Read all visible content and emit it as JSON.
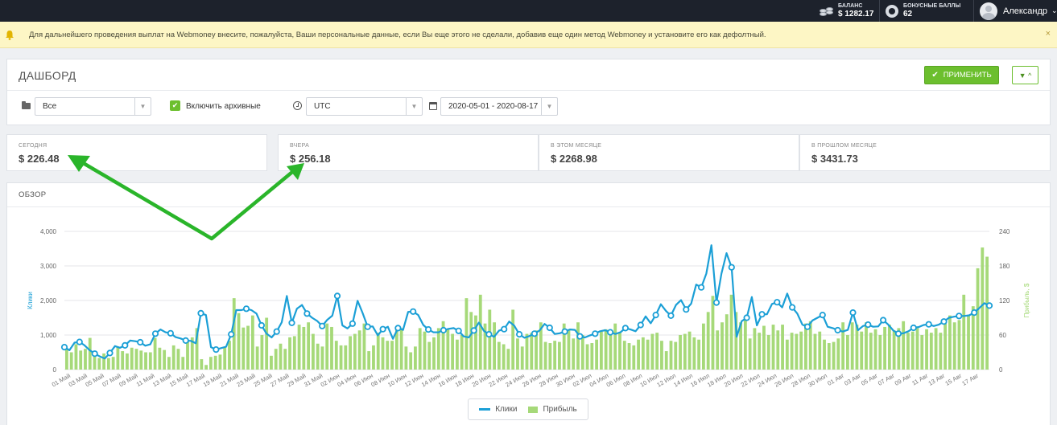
{
  "topbar": {
    "balance_label": "БАЛАНС",
    "balance_value": "$ 1282.17",
    "bonus_label": "БОНУСНЫЕ БАЛЛЫ",
    "bonus_value": "62",
    "user_name": "Александр"
  },
  "alert": {
    "text": "Для дальнейшего проведения выплат на Webmoney внесите, пожалуйста, Ваши персональные данные, если Вы еще этого не сделали, добавив еще один метод Webmoney и установите его как дефолтный.",
    "close": "×"
  },
  "dashboard": {
    "title": "ДАШБОРД",
    "apply_label": "ПРИМЕНИТЬ",
    "filter_toggle": "▼ ^",
    "category_select": "Все",
    "archive_checkbox_label": "Включить архивные",
    "timezone_select": "UTC",
    "date_range": "2020-05-01 - 2020-08-17"
  },
  "stats": [
    {
      "label": "СЕГОДНЯ",
      "value": "$ 226.48"
    },
    {
      "label": "ВЧЕРА",
      "value": "$ 256.18"
    },
    {
      "label": "В ЭТОМ МЕСЯЦЕ",
      "value": "$ 2268.98"
    },
    {
      "label": "В ПРОШЛОМ МЕСЯЦЕ",
      "value": "$ 3431.73"
    }
  ],
  "overview": {
    "title": "ОБЗОР"
  },
  "colors": {
    "clicks": "#1b9fd6",
    "profit": "#a6d979",
    "accent": "#6cbf2e",
    "annotation_arrow": "#2ab52a"
  },
  "chart_data": {
    "type": "bar",
    "ylabel_left": "Клики",
    "ylabel_right": "Прибыль, $",
    "y_left_range": [
      0,
      4000
    ],
    "y_left_ticks": [
      "0",
      "1,000",
      "2,000",
      "3,000",
      "4,000"
    ],
    "y_right_range": [
      0,
      240
    ],
    "y_right_ticks": [
      "0",
      "60",
      "120",
      "180",
      "240"
    ],
    "x_tick_labels": [
      "01 Май",
      "03 Май",
      "05 Май",
      "07 Май",
      "09 Май",
      "11 Май",
      "13 Май",
      "15 Май",
      "17 Май",
      "19 Май",
      "21 Май",
      "23 Май",
      "25 Май",
      "27 Май",
      "29 Май",
      "31 Май",
      "02 Июн",
      "04 Июн",
      "06 Июн",
      "08 Июн",
      "10 Июн",
      "12 Июн",
      "14 Июн",
      "16 Июн",
      "18 Июн",
      "20 Июн",
      "22 Июн",
      "24 Июн",
      "26 Июн",
      "28 Июн",
      "30 Июн",
      "02 Июл",
      "04 Июл",
      "06 Июл",
      "08 Июл",
      "10 Июл",
      "12 Июл",
      "14 Июл",
      "16 Июл",
      "18 Июл",
      "20 Июл",
      "22 Июл",
      "24 Июл",
      "26 Июл",
      "28 Июл",
      "30 Июл",
      "01 Авг",
      "03 Авг",
      "05 Авг",
      "07 Авг",
      "09 Авг",
      "11 Авг",
      "13 Авг",
      "15 Авг",
      "17 Авг"
    ],
    "grid": true,
    "legend_position": "bottom-center",
    "series": [
      {
        "name": "Клики",
        "type": "line",
        "axis": "left",
        "values": [
          650,
          560,
          780,
          800,
          700,
          560,
          460,
          380,
          320,
          480,
          680,
          630,
          700,
          840,
          820,
          790,
          690,
          730,
          1040,
          1160,
          1080,
          1050,
          940,
          900,
          840,
          830,
          760,
          1630,
          1580,
          650,
          580,
          620,
          660,
          1020,
          1720,
          1720,
          1760,
          1720,
          1620,
          1280,
          1040,
          930,
          1100,
          1370,
          2130,
          1350,
          1760,
          1870,
          1620,
          1500,
          1410,
          1260,
          1440,
          1560,
          2130,
          1280,
          1190,
          1330,
          1990,
          1640,
          1240,
          1250,
          990,
          1170,
          1240,
          890,
          1200,
          1150,
          1670,
          1680,
          1580,
          1290,
          1160,
          1080,
          1080,
          1140,
          1180,
          1200,
          1120,
          960,
          930,
          1130,
          1360,
          1120,
          1020,
          950,
          1130,
          1170,
          1390,
          1270,
          1020,
          920,
          970,
          1040,
          1130,
          1320,
          1210,
          1030,
          1050,
          1100,
          1160,
          1150,
          960,
          930,
          990,
          1040,
          1110,
          1140,
          1080,
          1030,
          1080,
          1200,
          1160,
          1110,
          1290,
          1540,
          1340,
          1580,
          1890,
          1700,
          1560,
          1870,
          2010,
          1740,
          1910,
          2460,
          2380,
          2780,
          3600,
          1940,
          2780,
          3370,
          2960,
          950,
          1400,
          1500,
          2100,
          1280,
          1600,
          1600,
          1900,
          1950,
          1800,
          2200,
          1800,
          1620,
          1300,
          1240,
          1420,
          1500,
          1580,
          1240,
          1200,
          1140,
          1100,
          1150,
          1650,
          1140,
          1260,
          1300,
          1240,
          1250,
          1430,
          1300,
          1130,
          1040,
          1050,
          1110,
          1210,
          1230,
          1290,
          1310,
          1260,
          1300,
          1390,
          1500,
          1530,
          1550,
          1550,
          1570,
          1650,
          1780,
          1920,
          1850
        ]
      },
      {
        "name": "Прибыль",
        "type": "bar",
        "axis": "right",
        "values": [
          36,
          30,
          44,
          33,
          36,
          55,
          30,
          20,
          28,
          20,
          22,
          40,
          32,
          28,
          38,
          36,
          33,
          30,
          30,
          55,
          38,
          34,
          22,
          42,
          36,
          22,
          50,
          56,
          72,
          18,
          8,
          22,
          24,
          26,
          38,
          50,
          124,
          98,
          73,
          76,
          94,
          40,
          60,
          90,
          24,
          36,
          45,
          36,
          56,
          58,
          78,
          74,
          82,
          62,
          45,
          40,
          80,
          74,
          50,
          42,
          42,
          58,
          62,
          68,
          80,
          32,
          42,
          64,
          56,
          50,
          50,
          70,
          72,
          40,
          30,
          40,
          72,
          66,
          48,
          56,
          72,
          84,
          70,
          62,
          52,
          60,
          124,
          100,
          94,
          130,
          80,
          104,
          82,
          48,
          44,
          36,
          104,
          54,
          40,
          62,
          64,
          68,
          82,
          48,
          46,
          50,
          48,
          80,
          68,
          54,
          82,
          60,
          44,
          46,
          52,
          66,
          70,
          64,
          80,
          64,
          50,
          46,
          42,
          52,
          56,
          52,
          62,
          64,
          50,
          32,
          50,
          48,
          60,
          62,
          66,
          56,
          52,
          80,
          100,
          128,
          68,
          82,
          96,
          130,
          100,
          82,
          90,
          54,
          72,
          64,
          76,
          60,
          78,
          68,
          78,
          52,
          64,
          62,
          66,
          80,
          84,
          62,
          66,
          52,
          46,
          48,
          54,
          82,
          60,
          82,
          78,
          66,
          82,
          64,
          70,
          60,
          74,
          78,
          68,
          72,
          84,
          64,
          66,
          72,
          60,
          70,
          64,
          72,
          64,
          80,
          94,
          82,
          86,
          130,
          94,
          110,
          176,
          212,
          196
        ]
      }
    ]
  }
}
